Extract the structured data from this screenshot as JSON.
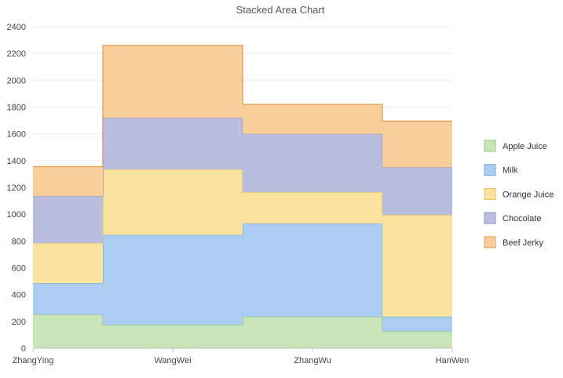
{
  "chart_data": {
    "type": "area",
    "title": "Stacked Area Chart",
    "categories": [
      "ZhangYing",
      "WangWei",
      "ZhangWu",
      "HanWen"
    ],
    "ylim": [
      0,
      2400
    ],
    "yticks": [
      0,
      200,
      400,
      600,
      800,
      1000,
      1200,
      1400,
      1600,
      1800,
      2000,
      2200,
      2400
    ],
    "stacked": true,
    "step": true,
    "grid": true,
    "legend_position": "right",
    "series": [
      {
        "name": "Apple Juice",
        "values": [
          250,
          175,
          235,
          125
        ],
        "color": "#c8e6b8",
        "stroke": "#93c47d"
      },
      {
        "name": "Milk",
        "values": [
          235,
          670,
          695,
          110
        ],
        "color": "#abcdf1",
        "stroke": "#6fa8dc"
      },
      {
        "name": "Orange Juice",
        "values": [
          300,
          490,
          235,
          760
        ],
        "color": "#fae29f",
        "stroke": "#e6c15a"
      },
      {
        "name": "Chocolate",
        "values": [
          350,
          385,
          435,
          355
        ],
        "color": "#b9bde0",
        "stroke": "#8e94c7"
      },
      {
        "name": "Beef Jerky",
        "values": [
          220,
          540,
          220,
          345
        ],
        "color": "#f8ce9a",
        "stroke": "#e69b4c"
      }
    ]
  }
}
